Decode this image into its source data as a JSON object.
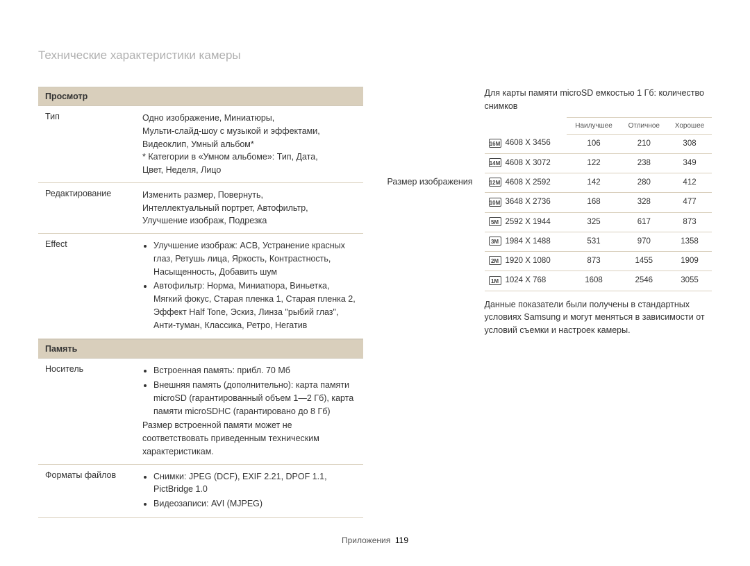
{
  "pageTitle": "Технические характеристики камеры",
  "leftColumn": {
    "section1": {
      "header": "Просмотр",
      "rows": {
        "r0": {
          "label": "Тип",
          "text": "Одно изображение, Миниатюры,\nМульти-слайд-шоу с музыкой и эффектами,\nВидеоклип, Умный альбом*\n* Категории в «Умном альбоме»: Тип, Дата,\n   Цвет, Неделя, Лицо"
        },
        "r1": {
          "label": "Редактирование",
          "text": "Изменить размер, Повернуть,\nИнтеллектуальный портрет, Автофильтр,\nУлучшение изображ, Подрезка"
        },
        "r2": {
          "label": "Effect",
          "b0": "Улучшение изображ: ACB, Устранение красных глаз, Ретушь лица, Яркость, Контрастность, Насыщенность, Добавить шум",
          "b1": "Автофильтр: Норма, Миниатюра, Виньетка, Мягкий фокус, Старая пленка 1, Старая пленка 2, Эффект Half Tone, Эскиз, Линза \"рыбий глаз\", Анти-туман, Классика, Ретро, Негатив"
        }
      }
    },
    "section2": {
      "header": "Память",
      "rows": {
        "r0": {
          "label": "Носитель",
          "b0": "Встроенная память: прибл. 70 Мб",
          "b1": "Внешняя память (дополнительно): карта памяти microSD (гарантированный объем 1—2 Гб), карта памяти microSDHC (гарантировано до 8 Гб)",
          "after": "Размер встроенной памяти может не соответствовать приведенным техническим характеристикам."
        },
        "r1": {
          "label": "Форматы файлов",
          "b0": "Снимки: JPEG (DCF), EXIF 2.21, DPOF 1.1, PictBridge 1.0",
          "b1": "Видеозаписи: AVI (MJPEG)"
        }
      }
    }
  },
  "rightColumn": {
    "label": "Размер изображения",
    "intro": "Для карты памяти microSD емкостью 1 Гб: количество снимков",
    "headers": {
      "c1": "Наилучшее",
      "c2": "Отличное",
      "c3": "Хорошее"
    },
    "rows": [
      {
        "icon": "16M",
        "dim": "4608 X 3456",
        "v1": "106",
        "v2": "210",
        "v3": "308"
      },
      {
        "icon": "14M",
        "dim": "4608 X 3072",
        "v1": "122",
        "v2": "238",
        "v3": "349"
      },
      {
        "icon": "12M",
        "dim": "4608 X 2592",
        "v1": "142",
        "v2": "280",
        "v3": "412"
      },
      {
        "icon": "10M",
        "dim": "3648 X 2736",
        "v1": "168",
        "v2": "328",
        "v3": "477"
      },
      {
        "icon": "5M",
        "dim": "2592 X 1944",
        "v1": "325",
        "v2": "617",
        "v3": "873"
      },
      {
        "icon": "3M",
        "dim": "1984 X 1488",
        "v1": "531",
        "v2": "970",
        "v3": "1358"
      },
      {
        "icon": "2M",
        "dim": "1920 X 1080",
        "v1": "873",
        "v2": "1455",
        "v3": "1909"
      },
      {
        "icon": "1M",
        "dim": "1024 X 768",
        "v1": "1608",
        "v2": "2546",
        "v3": "3055"
      }
    ],
    "note": "Данные показатели были получены в стандартных условиях Samsung и могут меняться в зависимости от условий съемки и настроек камеры."
  },
  "footer": {
    "label": "Приложения",
    "page": "119"
  }
}
